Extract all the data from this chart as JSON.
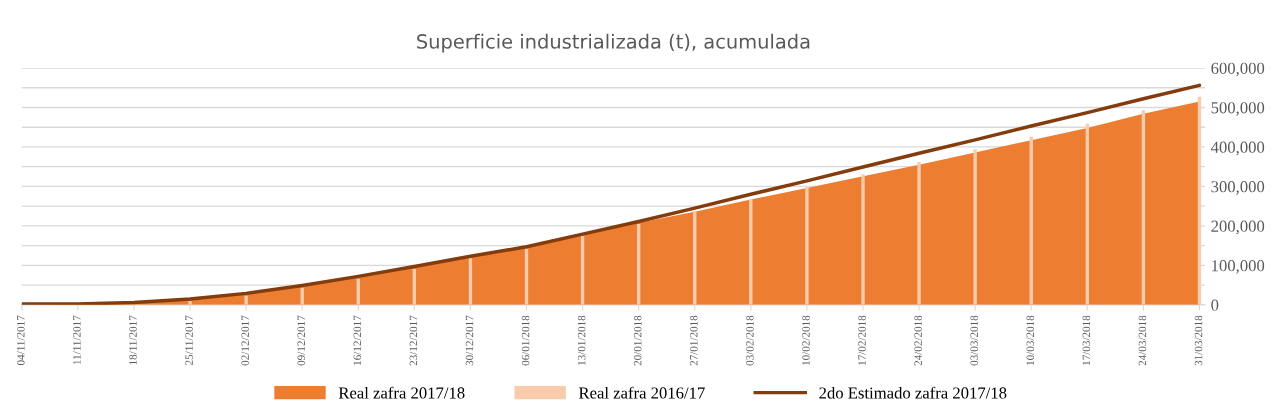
{
  "chart_data": {
    "type": "area",
    "title": "Superficie industrializada (t), acumulada",
    "categories": [
      "04/11/2017",
      "11/11/2017",
      "18/11/2017",
      "25/11/2017",
      "02/12/2017",
      "09/12/2017",
      "16/12/2017",
      "23/12/2017",
      "30/12/2017",
      "06/01/2018",
      "13/01/2018",
      "20/01/2018",
      "27/01/2018",
      "03/02/2018",
      "10/02/2018",
      "17/02/2018",
      "24/02/2018",
      "03/03/2018",
      "10/03/2018",
      "17/03/2018",
      "24/03/2018",
      "31/03/2018"
    ],
    "series": [
      {
        "name": "Real zafra 2017/18",
        "color": "#ed7d31",
        "values": [
          1000,
          2000,
          6000,
          14000,
          28000,
          47000,
          70000,
          95000,
          121000,
          146000,
          177000,
          208000,
          236000,
          267000,
          296000,
          326000,
          355000,
          386000,
          417000,
          448000,
          484000,
          515000
        ]
      },
      {
        "name": "Real zafra 2016/17",
        "type": "bar",
        "color": "#f8cbad",
        "values": [
          0,
          1000,
          null,
          10000,
          23000,
          43000,
          66000,
          91000,
          118000,
          142000,
          175000,
          205000,
          238000,
          268000,
          298000,
          331000,
          362000,
          394000,
          426000,
          459000,
          493000,
          527000
        ]
      },
      {
        "name": "2do Estimado zafra 2017/18",
        "type": "line",
        "color": "#843c0c",
        "values": [
          2000,
          2000,
          6000,
          15000,
          29000,
          49000,
          72000,
          97000,
          123000,
          147000,
          179000,
          211000,
          245000,
          280000,
          314000,
          349000,
          384000,
          418000,
          453000,
          487000,
          522000,
          556000
        ]
      }
    ],
    "ylim": [
      0,
      600000
    ],
    "yticks": [
      0,
      {
        "value": 50000,
        "label": null
      },
      {
        "value": 100000,
        "label": "100,000"
      },
      {
        "value": 150000,
        "label": null
      },
      {
        "value": 200000,
        "label": "200,000"
      },
      {
        "value": 250000,
        "label": null
      },
      {
        "value": 300000,
        "label": "300,000"
      },
      {
        "value": 350000,
        "label": null
      },
      {
        "value": 400000,
        "label": "400,000"
      },
      {
        "value": 450000,
        "label": null
      },
      {
        "value": 500000,
        "label": "500,000"
      },
      {
        "value": 550000,
        "label": null
      },
      {
        "value": 600000,
        "label": "600,000"
      }
    ],
    "grid": "y",
    "legend": "bottom"
  }
}
